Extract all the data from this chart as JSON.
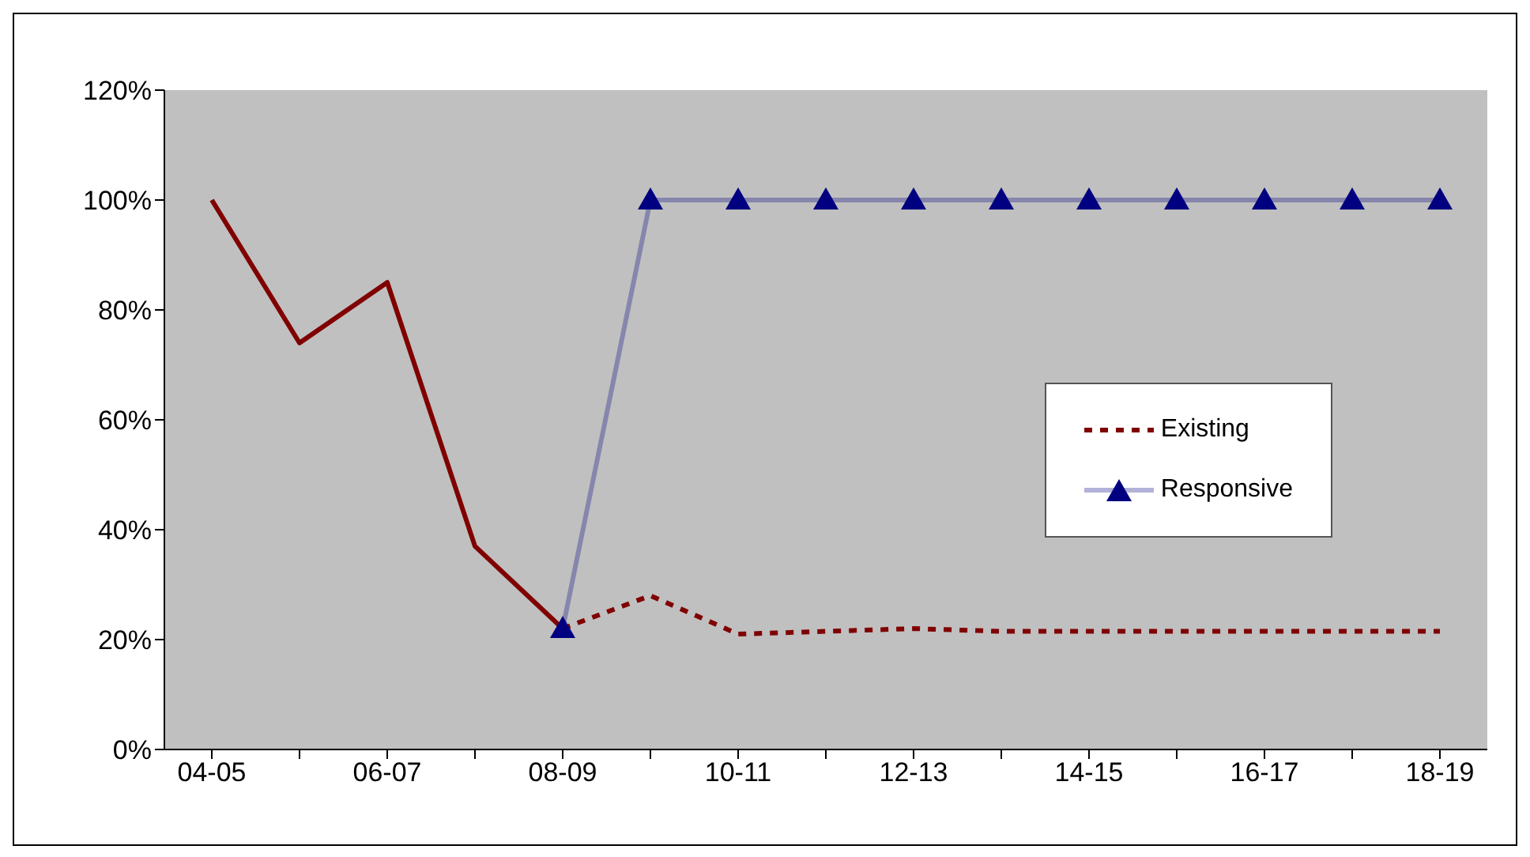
{
  "chart_data": {
    "type": "line",
    "categories": [
      "04-05",
      null,
      "06-07",
      null,
      "08-09",
      null,
      "10-11",
      null,
      "12-13",
      null,
      "14-15",
      null,
      "16-17",
      null,
      "18-19"
    ],
    "ylim": [
      0,
      120
    ],
    "yticks": [
      {
        "value": 0,
        "label": "0%"
      },
      {
        "value": 20,
        "label": "20%"
      },
      {
        "value": 40,
        "label": "40%"
      },
      {
        "value": 60,
        "label": "60%"
      },
      {
        "value": 80,
        "label": "80%"
      },
      {
        "value": 100,
        "label": "100%"
      },
      {
        "value": 120,
        "label": "120%"
      }
    ],
    "grid": false,
    "legend": "right",
    "series": [
      {
        "color": "#800000",
        "line_style": "solid",
        "marker": "none",
        "values": [
          100,
          74,
          85,
          37,
          22,
          null,
          null,
          null,
          null,
          null,
          null,
          null,
          null,
          null,
          null
        ]
      },
      {
        "name": "Existing",
        "color": "#800000",
        "line_style": "dashed",
        "marker": "none",
        "values": [
          null,
          null,
          null,
          null,
          22,
          28,
          21,
          21.5,
          22,
          21.5,
          21.5,
          21.5,
          21.5,
          21.5,
          21.5
        ]
      },
      {
        "name": "Responsive",
        "color": "#000080",
        "line_style": "solid",
        "marker": "triangle",
        "values": [
          null,
          null,
          null,
          null,
          22,
          100,
          100,
          100,
          100,
          100,
          100,
          100,
          100,
          100,
          100
        ]
      }
    ]
  }
}
